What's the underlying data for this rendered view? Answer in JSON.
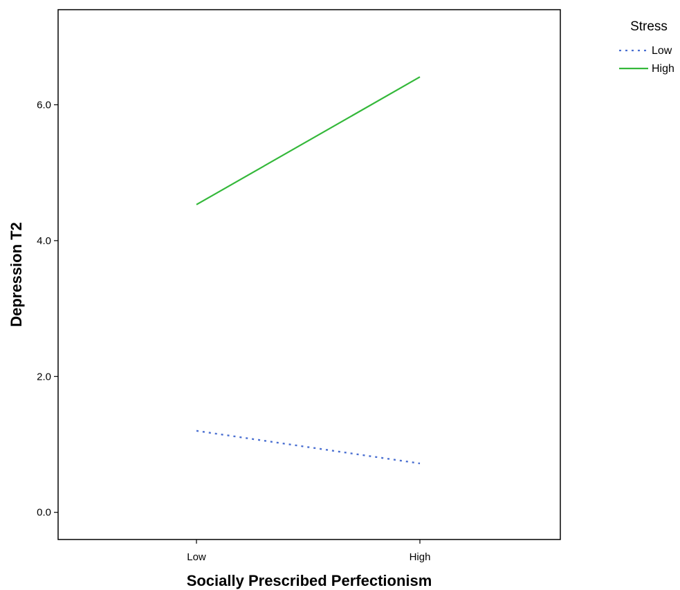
{
  "chart_data": {
    "type": "line",
    "title": "",
    "xlabel": "Socially Prescribed Perfectionism",
    "ylabel": "Depression T2",
    "categories": [
      "Low",
      "High"
    ],
    "yticks": [
      0.0,
      2.0,
      4.0,
      6.0
    ],
    "ytick_labels": [
      "0.0",
      "2.0",
      "4.0",
      "6.0"
    ],
    "ylim": [
      -0.4,
      7.4
    ],
    "grid": false,
    "legend": {
      "title": "Stress",
      "placement": "top-right"
    },
    "series": [
      {
        "name": "Low",
        "values": [
          1.2,
          0.72
        ],
        "color": "#4a6fd1",
        "style": "dashed"
      },
      {
        "name": "High",
        "values": [
          4.53,
          6.41
        ],
        "color": "#34b83a",
        "style": "solid"
      }
    ]
  }
}
